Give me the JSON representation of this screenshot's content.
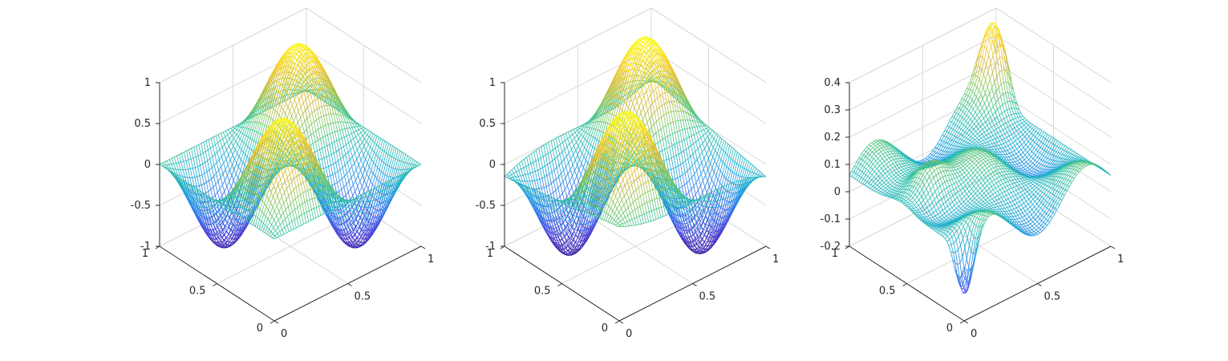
{
  "figure": {
    "background": "#ffffff",
    "colormap": [
      "#3e26a8",
      "#4a44e0",
      "#2d7ff0",
      "#17a7d6",
      "#2dc0a6",
      "#7cc85e",
      "#d6b93b",
      "#f9d52a",
      "#f9fb15"
    ]
  },
  "chart_data": [
    {
      "type": "mesh",
      "title": "",
      "xlabel": "",
      "ylabel": "",
      "zlabel": "",
      "surface": "sin(2*pi*x)*sin(2*pi*y)",
      "xlim": [
        0,
        1
      ],
      "ylim": [
        0,
        1
      ],
      "zlim": [
        -1,
        1
      ],
      "x_ticks": [
        "0",
        "0.5",
        "1"
      ],
      "y_ticks": [
        "0",
        "0.5",
        "1"
      ],
      "z_ticks": [
        "-1",
        "-0.5",
        "0",
        "0.5",
        "1"
      ],
      "z_tick_values": [
        -1,
        -0.5,
        0,
        0.5,
        1
      ],
      "grid": true
    },
    {
      "type": "mesh",
      "title": "",
      "xlabel": "",
      "ylabel": "",
      "zlabel": "",
      "surface": "approximation of sin(2*pi*x)*sin(2*pi*y)",
      "xlim": [
        0,
        1
      ],
      "ylim": [
        0,
        1
      ],
      "zlim": [
        -1,
        1
      ],
      "x_ticks": [
        "0",
        "0.5",
        "1"
      ],
      "y_ticks": [
        "0",
        "0.5",
        "1"
      ],
      "z_ticks": [
        "-1",
        "-0.5",
        "0",
        "0.5",
        "1"
      ],
      "z_tick_values": [
        -1,
        -0.5,
        0,
        0.5,
        1
      ],
      "grid": true
    },
    {
      "type": "mesh",
      "title": "",
      "xlabel": "",
      "ylabel": "",
      "zlabel": "",
      "surface": "error (difference between first two surfaces)",
      "xlim": [
        0,
        1
      ],
      "ylim": [
        0,
        1
      ],
      "zlim": [
        -0.2,
        0.4
      ],
      "x_ticks": [
        "0",
        "0.5",
        "1"
      ],
      "y_ticks": [
        "0",
        "0.5",
        "1"
      ],
      "z_ticks": [
        "-0.2",
        "-0.1",
        "0",
        "0.1",
        "0.2",
        "0.3",
        "0.4"
      ],
      "z_tick_values": [
        -0.2,
        -0.1,
        0,
        0.1,
        0.2,
        0.3,
        0.4
      ],
      "grid": true
    }
  ]
}
